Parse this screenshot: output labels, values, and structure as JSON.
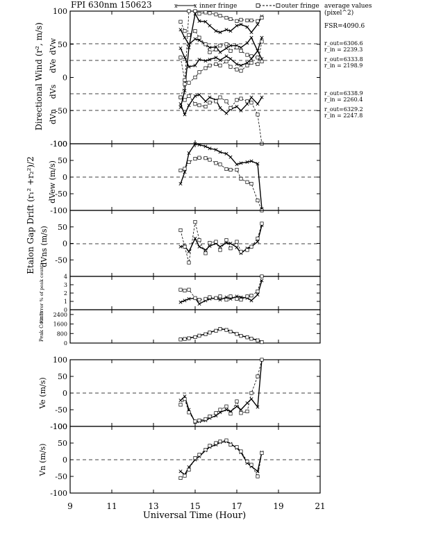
{
  "header": {
    "title": "FPI 630nm 150623",
    "legend_inner": "inner fringe",
    "legend_outer": "outer fringe",
    "avg_title_1": "average values",
    "avg_title_2": "(pixel^2)",
    "fsr": "FSR=4090.6"
  },
  "side_notes": [
    {
      "l1": "r_out=6306.6",
      "l2": "r_in = 2239.3"
    },
    {
      "l1": "r_out=6333.8",
      "l2": "r_in = 2198.9"
    },
    {
      "l1": "r_out=6338.9",
      "l2": "r_in = 2260.4"
    },
    {
      "l1": "r_out=6329.2",
      "l2": "r_in = 2247.8"
    }
  ],
  "group_labels": {
    "directional": "Directional Wind (r², m/s)",
    "etalon": "Etalon Gap Drift (r₁² +r₂²)/2"
  },
  "inner_labels": {
    "dvw": "dVw",
    "dve": "dVe",
    "dvs": "dVs",
    "dvn": "dVn",
    "dvew": "dVew (m/s)",
    "dvns": "dVns (m/s)"
  },
  "x_axis": {
    "label": "Universal Time (Hour)",
    "ticks": [
      "9",
      "11",
      "13",
      "15",
      "17",
      "19",
      "21"
    ]
  },
  "colors": {
    "ink": "#000000",
    "background": "#ffffff"
  },
  "chart_data": [
    {
      "id": "directional",
      "type": "line",
      "ylim": [
        -100,
        100
      ],
      "tick_labels": [
        "100",
        "50",
        "0",
        "-50",
        "-100"
      ],
      "series": [
        {
          "marker": "x",
          "dashed": false,
          "x": [
            14.3,
            14.5,
            14.7,
            15.0,
            15.2,
            15.5,
            15.7,
            16.0,
            16.2,
            16.5,
            16.7,
            17.0,
            17.2,
            17.5,
            17.7,
            18.0,
            18.2
          ],
          "y": [
            -45,
            -20,
            45,
            96,
            85,
            84,
            78,
            70,
            68,
            72,
            70,
            78,
            80,
            76,
            68,
            80,
            92
          ]
        },
        {
          "marker": "o",
          "dashed": true,
          "x": [
            14.3,
            14.5,
            14.7,
            15.0,
            15.2,
            15.5,
            15.7,
            16.0,
            16.2,
            16.5,
            16.7,
            17.0,
            17.2,
            17.5,
            17.7,
            18.0,
            18.2
          ],
          "y": [
            -30,
            -10,
            100,
            100,
            96,
            98,
            97,
            95,
            93,
            90,
            88,
            85,
            87,
            86,
            86,
            85,
            90
          ]
        },
        {
          "marker": "x",
          "dashed": false,
          "x": [
            14.3,
            14.5,
            14.7,
            15.0,
            15.2,
            15.5,
            15.7,
            16.0,
            16.2,
            16.5,
            16.7,
            17.0,
            17.2,
            17.5,
            17.7,
            18.0,
            18.2
          ],
          "y": [
            72,
            60,
            50,
            58,
            56,
            50,
            45,
            46,
            38,
            44,
            48,
            48,
            45,
            52,
            60,
            40,
            28
          ]
        },
        {
          "marker": "o",
          "dashed": true,
          "x": [
            14.3,
            14.5,
            14.7,
            15.0,
            15.2,
            15.5,
            15.7,
            16.0,
            16.2,
            16.5,
            16.7,
            17.0,
            17.2,
            17.5,
            17.7,
            18.0,
            18.2
          ],
          "y": [
            84,
            70,
            64,
            70,
            60,
            50,
            38,
            42,
            48,
            50,
            40,
            45,
            40,
            34,
            32,
            30,
            24
          ]
        },
        {
          "marker": "x",
          "dashed": false,
          "x": [
            14.3,
            14.5,
            14.7,
            15.0,
            15.2,
            15.5,
            15.7,
            16.0,
            16.2,
            16.5,
            16.7,
            17.0,
            17.2,
            17.5,
            17.7,
            18.0,
            18.2
          ],
          "y": [
            44,
            30,
            16,
            18,
            27,
            25,
            27,
            30,
            26,
            32,
            28,
            20,
            18,
            22,
            28,
            40,
            60
          ]
        },
        {
          "marker": "o",
          "dashed": true,
          "x": [
            14.3,
            14.5,
            14.7,
            15.0,
            15.2,
            15.5,
            15.7,
            16.0,
            16.2,
            16.5,
            16.7,
            17.0,
            17.2,
            17.5,
            17.7,
            18.0,
            18.2
          ],
          "y": [
            30,
            -4,
            -8,
            0,
            8,
            14,
            18,
            20,
            18,
            24,
            16,
            12,
            10,
            18,
            22,
            20,
            54
          ]
        },
        {
          "marker": "x",
          "dashed": false,
          "x": [
            14.3,
            14.5,
            14.7,
            15.0,
            15.2,
            15.5,
            15.7,
            16.0,
            16.2,
            16.5,
            16.7,
            17.0,
            17.2,
            17.5,
            17.7,
            18.0,
            18.2
          ],
          "y": [
            -40,
            -56,
            -42,
            -28,
            -26,
            -36,
            -30,
            -34,
            -46,
            -54,
            -48,
            -44,
            -50,
            -40,
            -30,
            -40,
            -30
          ]
        },
        {
          "marker": "o",
          "dashed": true,
          "x": [
            14.3,
            14.5,
            14.7,
            15.0,
            15.2,
            15.5,
            15.7,
            16.0,
            16.2,
            16.5,
            16.7,
            17.0,
            17.2,
            17.5,
            17.7,
            18.0,
            18.2
          ],
          "y": [
            -30,
            -34,
            -28,
            -40,
            -42,
            -44,
            -38,
            -36,
            -30,
            -36,
            -46,
            -34,
            -32,
            -36,
            -38,
            -56,
            -100
          ]
        }
      ]
    },
    {
      "id": "dvew",
      "type": "line",
      "ylim": [
        -100,
        100
      ],
      "tick_labels": [
        "100",
        "50",
        "0",
        "-50",
        "-100"
      ],
      "series": [
        {
          "marker": "x",
          "dashed": false,
          "x": [
            14.3,
            14.5,
            14.7,
            15.0,
            15.2,
            15.5,
            15.7,
            16.0,
            16.2,
            16.5,
            16.7,
            17.0,
            17.2,
            17.5,
            17.7,
            18.0,
            18.2
          ],
          "y": [
            -20,
            15,
            72,
            100,
            97,
            92,
            86,
            82,
            75,
            70,
            60,
            38,
            42,
            45,
            48,
            40,
            -95
          ]
        },
        {
          "marker": "o",
          "dashed": true,
          "x": [
            14.3,
            14.5,
            14.7,
            15.0,
            15.2,
            15.5,
            15.7,
            16.0,
            16.2,
            16.5,
            16.7,
            17.0,
            17.2,
            17.5,
            17.7,
            18.0,
            18.2
          ],
          "y": [
            20,
            25,
            45,
            55,
            58,
            57,
            52,
            42,
            38,
            24,
            22,
            22,
            -5,
            -15,
            -20,
            -70,
            -100
          ]
        }
      ]
    },
    {
      "id": "dvns",
      "type": "line",
      "ylim": [
        -100,
        100
      ],
      "tick_labels": [
        "50",
        "0",
        "-50"
      ],
      "series": [
        {
          "marker": "x",
          "dashed": false,
          "x": [
            14.3,
            14.5,
            14.7,
            15.0,
            15.2,
            15.5,
            15.7,
            16.0,
            16.2,
            16.5,
            16.7,
            17.0,
            17.2,
            17.5,
            17.7,
            18.0,
            18.2
          ],
          "y": [
            -10,
            -8,
            -25,
            15,
            -10,
            -20,
            -8,
            0,
            -10,
            2,
            0,
            -12,
            -30,
            -15,
            -10,
            5,
            55
          ]
        },
        {
          "marker": "o",
          "dashed": true,
          "x": [
            14.3,
            14.5,
            14.7,
            15.0,
            15.2,
            15.5,
            15.7,
            16.0,
            16.2,
            16.5,
            16.7,
            17.0,
            17.2,
            17.5,
            17.7,
            18.0,
            18.2
          ],
          "y": [
            40,
            -10,
            -58,
            65,
            10,
            -30,
            2,
            5,
            -20,
            10,
            -15,
            5,
            -25,
            -20,
            -10,
            15,
            60
          ]
        }
      ]
    },
    {
      "id": "fit_error",
      "type": "line",
      "ylim": [
        0,
        4
      ],
      "ylabel": "Fit Error % of peak counts",
      "tick_labels": [
        "4",
        "3",
        "2",
        "1",
        "0"
      ],
      "series": [
        {
          "marker": "x",
          "dashed": false,
          "x": [
            14.3,
            14.5,
            14.7,
            15.0,
            15.2,
            15.5,
            15.7,
            16.0,
            16.2,
            16.5,
            16.7,
            17.0,
            17.2,
            17.5,
            17.7,
            18.0,
            18.2
          ],
          "y": [
            0.9,
            1.1,
            1.3,
            1.4,
            0.7,
            1.1,
            1.3,
            1.4,
            1.2,
            1.5,
            1.3,
            1.6,
            1.5,
            1.4,
            1.1,
            1.8,
            3.5
          ]
        },
        {
          "marker": "o",
          "dashed": true,
          "x": [
            14.3,
            14.5,
            14.7,
            15.0,
            15.2,
            15.5,
            15.7,
            16.0,
            16.2,
            16.5,
            16.7,
            17.0,
            17.2,
            17.5,
            17.7,
            18.0,
            18.2
          ],
          "y": [
            2.4,
            2.3,
            2.4,
            1.4,
            1.2,
            1.3,
            1.5,
            1.4,
            1.6,
            1.2,
            1.6,
            1.3,
            1.2,
            1.6,
            1.7,
            2.2,
            4.0
          ]
        }
      ]
    },
    {
      "id": "peak_counts",
      "type": "line",
      "ylim": [
        0,
        2800
      ],
      "ylabel": "Peak Counts",
      "tick_labels": [
        "2400",
        "1600",
        "800",
        "0"
      ],
      "series": [
        {
          "marker": "x",
          "dashed": false,
          "x": [
            14.3,
            14.5,
            14.7,
            15.0,
            15.2,
            15.5,
            15.7,
            16.0,
            16.2,
            16.5,
            16.7,
            17.0,
            17.2,
            17.5,
            17.7,
            18.0,
            18.2
          ],
          "y": [
            320,
            360,
            420,
            520,
            640,
            760,
            900,
            1050,
            1200,
            1120,
            980,
            780,
            620,
            500,
            380,
            250,
            100
          ]
        },
        {
          "marker": "o",
          "dashed": true,
          "x": [
            14.3,
            14.5,
            14.7,
            15.0,
            15.2,
            15.5,
            15.7,
            16.0,
            16.2,
            16.5,
            16.7,
            17.0,
            17.2,
            17.5,
            17.7,
            18.0,
            18.2
          ],
          "y": [
            300,
            340,
            400,
            500,
            620,
            740,
            880,
            1030,
            1180,
            1100,
            960,
            760,
            600,
            480,
            360,
            220,
            80
          ]
        }
      ]
    },
    {
      "id": "ve",
      "type": "line",
      "ylim": [
        -100,
        100
      ],
      "ylabel": "Ve (m/s)",
      "tick_labels": [
        "100",
        "50",
        "0",
        "-50",
        "-100"
      ],
      "series": [
        {
          "marker": "x",
          "dashed": false,
          "x": [
            14.3,
            14.5,
            14.7,
            15.0,
            15.2,
            15.5,
            15.7,
            16.0,
            16.2,
            16.5,
            16.7,
            17.0,
            17.2,
            17.5,
            17.7,
            18.0,
            18.2
          ],
          "y": [
            -22,
            -10,
            -50,
            -88,
            -85,
            -82,
            -75,
            -68,
            -58,
            -50,
            -55,
            -40,
            -50,
            -30,
            -18,
            -42,
            100
          ]
        },
        {
          "marker": "o",
          "dashed": true,
          "x": [
            14.3,
            14.5,
            14.7,
            15.0,
            15.2,
            15.5,
            15.7,
            16.0,
            16.2,
            16.5,
            16.7,
            17.0,
            17.2,
            17.5,
            17.7,
            18.0,
            18.2
          ],
          "y": [
            -35,
            -18,
            -58,
            -85,
            -82,
            -78,
            -70,
            -60,
            -50,
            -40,
            -62,
            -25,
            -60,
            -55,
            0,
            50,
            100
          ]
        }
      ]
    },
    {
      "id": "vn",
      "type": "line",
      "ylim": [
        -100,
        100
      ],
      "ylabel": "Vn (m/s)",
      "tick_labels": [
        "100",
        "50",
        "0",
        "-50",
        "-100"
      ],
      "series": [
        {
          "marker": "x",
          "dashed": false,
          "x": [
            14.3,
            14.5,
            14.7,
            15.0,
            15.2,
            15.5,
            15.7,
            16.0,
            16.2,
            16.5,
            16.7,
            17.0,
            17.2,
            17.5,
            17.7,
            18.0,
            18.2
          ],
          "y": [
            -35,
            -45,
            -22,
            0,
            10,
            28,
            38,
            45,
            52,
            55,
            48,
            35,
            22,
            -10,
            -20,
            -35,
            22
          ]
        },
        {
          "marker": "o",
          "dashed": true,
          "x": [
            14.3,
            14.5,
            14.7,
            15.0,
            15.2,
            15.5,
            15.7,
            16.0,
            16.2,
            16.5,
            16.7,
            17.0,
            17.2,
            17.5,
            17.7,
            18.0,
            18.2
          ],
          "y": [
            -55,
            -48,
            -30,
            5,
            15,
            30,
            42,
            50,
            55,
            58,
            45,
            38,
            25,
            -5,
            -15,
            -50,
            20
          ]
        }
      ]
    }
  ]
}
